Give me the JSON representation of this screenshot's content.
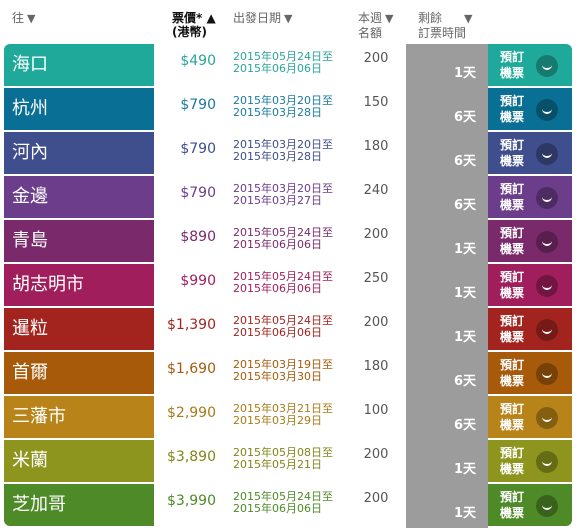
{
  "header": {
    "destination": "往",
    "price": "票價* ▲",
    "price_sub": "(港幣)",
    "date": "出發日期",
    "seats_line1": "本週",
    "seats_line2": "名額",
    "remain_line1": "剩餘",
    "remain_line2": "訂票時間",
    "sort_arrow": "▼"
  },
  "book_label": "預訂機票",
  "rows": [
    {
      "dest": "海口",
      "price": "$490",
      "date_from": "2015年05月24日至",
      "date_to": "2015年06月06日",
      "seats": "200",
      "remain": "1天",
      "color": "#1fa99a",
      "text_color": "#2aa59b"
    },
    {
      "dest": "杭州",
      "price": "$790",
      "date_from": "2015年03月20日至",
      "date_to": "2015年03月28日",
      "seats": "150",
      "remain": "6天",
      "color": "#0a6f94",
      "text_color": "#1a7aa0"
    },
    {
      "dest": "河內",
      "price": "$790",
      "date_from": "2015年03月20日至",
      "date_to": "2015年03月28日",
      "seats": "180",
      "remain": "6天",
      "color": "#3f4e8d",
      "text_color": "#3f4e8d"
    },
    {
      "dest": "金邊",
      "price": "$790",
      "date_from": "2015年03月20日至",
      "date_to": "2015年03月27日",
      "seats": "240",
      "remain": "6天",
      "color": "#6b3d8a",
      "text_color": "#6b3d8a"
    },
    {
      "dest": "青島",
      "price": "$890",
      "date_from": "2015年05月24日至",
      "date_to": "2015年06月06日",
      "seats": "200",
      "remain": "1天",
      "color": "#7a2a6b",
      "text_color": "#7a2a6b"
    },
    {
      "dest": "胡志明市",
      "price": "$990",
      "date_from": "2015年05月24日至",
      "date_to": "2015年06月06日",
      "seats": "250",
      "remain": "1天",
      "color": "#a01e5c",
      "text_color": "#a01e5c"
    },
    {
      "dest": "暹粒",
      "price": "$1,390",
      "date_from": "2015年05月24日至",
      "date_to": "2015年06月06日",
      "seats": "200",
      "remain": "1天",
      "color": "#a3241f",
      "text_color": "#a3241f"
    },
    {
      "dest": "首爾",
      "price": "$1,690",
      "date_from": "2015年03月19日至",
      "date_to": "2015年03月30日",
      "seats": "180",
      "remain": "6天",
      "color": "#a65a0a",
      "text_color": "#a65a0a"
    },
    {
      "dest": "三藩市",
      "price": "$2,990",
      "date_from": "2015年03月21日至",
      "date_to": "2015年03月29日",
      "seats": "100",
      "remain": "6天",
      "color": "#b8841a",
      "text_color": "#a87a18"
    },
    {
      "dest": "米蘭",
      "price": "$3,890",
      "date_from": "2015年05月08日至",
      "date_to": "2015年05月21日",
      "seats": "200",
      "remain": "1天",
      "color": "#8e951e",
      "text_color": "#7f861a"
    },
    {
      "dest": "芝加哥",
      "price": "$3,990",
      "date_from": "2015年05月24日至",
      "date_to": "2015年06月06日",
      "seats": "200",
      "remain": "1天",
      "color": "#4f8a28",
      "text_color": "#4f8a28"
    }
  ]
}
